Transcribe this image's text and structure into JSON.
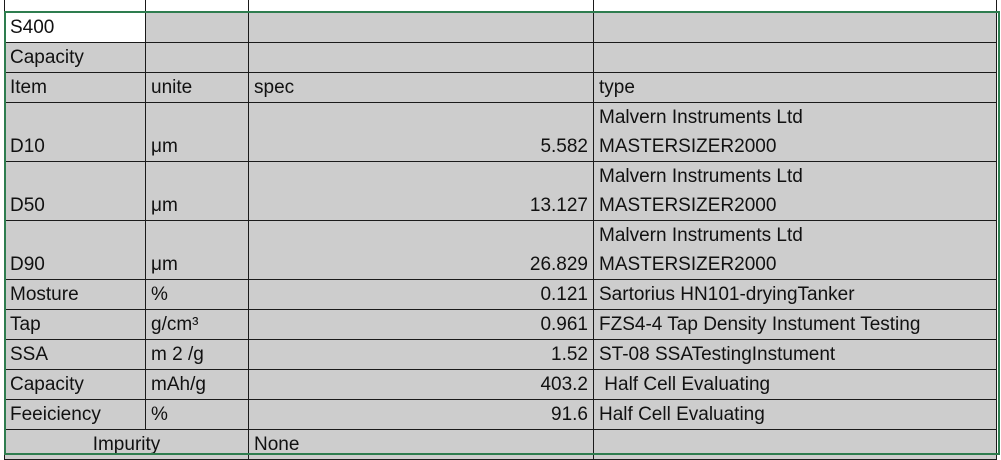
{
  "sheet": {
    "title_cell": "S400",
    "subtitle_cell": "Capacity",
    "headers": {
      "item": "Item",
      "unite": "unite",
      "spec": "spec",
      "type": "type"
    },
    "rows": [
      {
        "item": "D10",
        "unite": "μm",
        "spec": "5.582",
        "type_l1": "Malvern Instruments Ltd",
        "type_l2": "MASTERSIZER2000"
      },
      {
        "item": "D50",
        "unite": "μm",
        "spec": "13.127",
        "type_l1": "Malvern Instruments Ltd",
        "type_l2": "MASTERSIZER2000"
      },
      {
        "item": "D90",
        "unite": "μm",
        "spec": "26.829",
        "type_l1": "Malvern Instruments Ltd",
        "type_l2": "MASTERSIZER2000"
      },
      {
        "item": "Mosture",
        "unite": "%",
        "spec": "0.121",
        "type": "Sartorius HN101-dryingTanker"
      },
      {
        "item": "Tap",
        "unite": "g/cm³",
        "spec": "0.961",
        "type": "FZS4-4 Tap Density Instument Testing"
      },
      {
        "item": "SSA",
        "unite": "m 2 /g",
        "spec": "1.52",
        "type": "ST-08 SSATestingInstument"
      },
      {
        "item": "Capacity",
        "unite": "mAh/g",
        "spec": "403.2",
        "type": " Half Cell Evaluating"
      },
      {
        "item": "Feeiciency",
        "unite": "%",
        "spec": "91.6",
        "type": "Half Cell Evaluating"
      }
    ],
    "footer": {
      "impurity_label": "Impurity",
      "impurity_value": "None"
    },
    "colors": {
      "cell_bg": "#cdcdcd",
      "selection_border": "#2e7d4f"
    }
  }
}
